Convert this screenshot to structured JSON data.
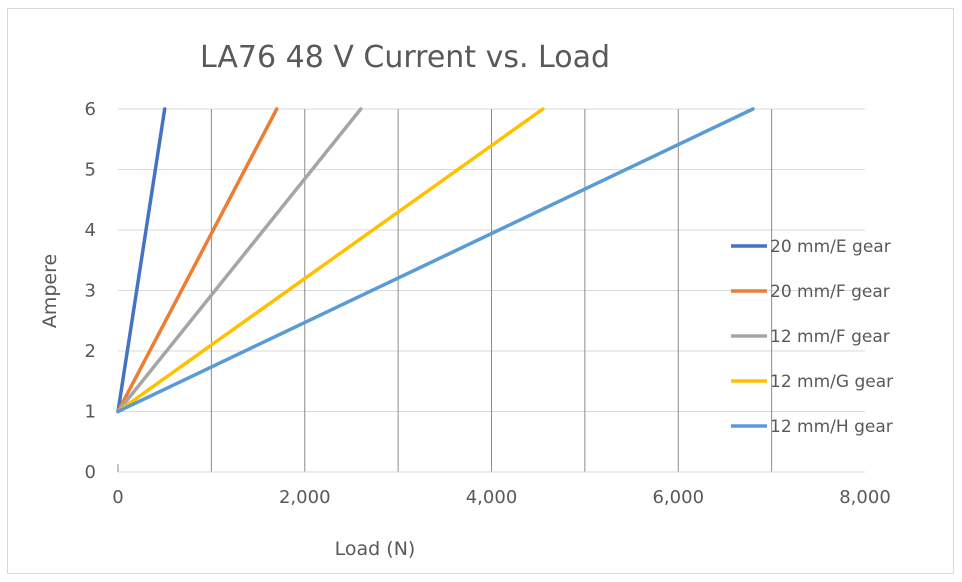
{
  "chart_data": {
    "type": "line",
    "title": "LA76 48 V Current vs. Load",
    "xlabel": "Load (N)",
    "ylabel": "Ampere",
    "xlim": [
      0,
      8000
    ],
    "ylim": [
      0,
      6
    ],
    "x_ticks": [
      "0",
      "2,000",
      "4,000",
      "6,000",
      "8,000"
    ],
    "x_tick_values": [
      0,
      2000,
      4000,
      6000,
      8000
    ],
    "x_minor_grid_values": [
      1000,
      2000,
      3000,
      4000,
      5000,
      6000,
      7000
    ],
    "y_ticks": [
      "0",
      "1",
      "2",
      "3",
      "4",
      "5",
      "6"
    ],
    "y_tick_values": [
      0,
      1,
      2,
      3,
      4,
      5,
      6
    ],
    "grid": true,
    "legend_position": "right",
    "series": [
      {
        "name": "20 mm/E gear",
        "color": "#4472C4",
        "points": [
          [
            0,
            1.0
          ],
          [
            500,
            6.0
          ]
        ]
      },
      {
        "name": "20 mm/F gear",
        "color": "#ED7D31",
        "points": [
          [
            0,
            1.0
          ],
          [
            1700,
            6.0
          ]
        ]
      },
      {
        "name": "12 mm/F gear",
        "color": "#A5A5A5",
        "points": [
          [
            0,
            1.0
          ],
          [
            2600,
            6.0
          ]
        ]
      },
      {
        "name": "12 mm/G gear",
        "color": "#FFC000",
        "points": [
          [
            0,
            1.0
          ],
          [
            4550,
            6.0
          ]
        ]
      },
      {
        "name": "12 mm/H gear",
        "color": "#5B9BD5",
        "points": [
          [
            0,
            1.0
          ],
          [
            6800,
            6.0
          ]
        ]
      }
    ]
  }
}
